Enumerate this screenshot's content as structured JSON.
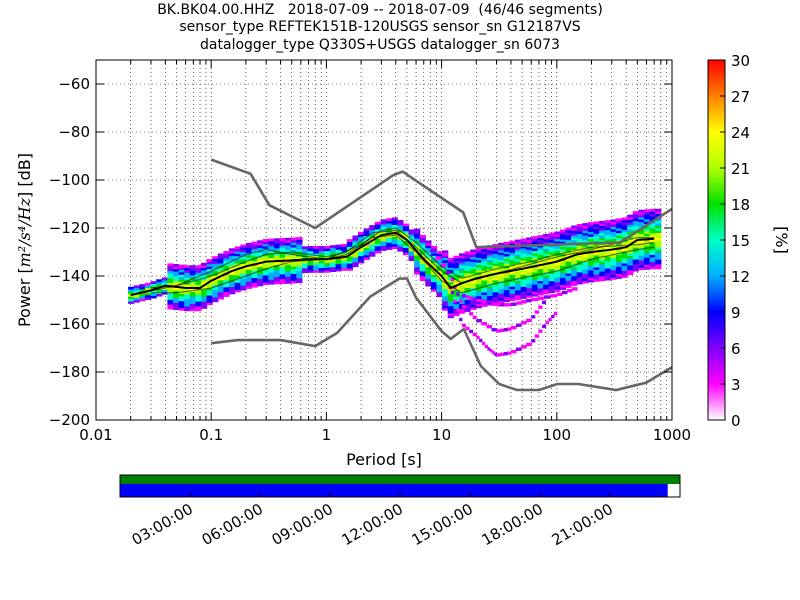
{
  "chart_data": {
    "type": "heatmap",
    "title_lines": [
      "BK.BK04.00.HHZ   2018-07-09 -- 2018-07-09  (46/46 segments)",
      "sensor_type REFTEK151B-120USGS sensor_sn G12187VS",
      "datalogger_type Q330S+USGS datalogger_sn 6073"
    ],
    "xlabel": "Period [s]",
    "ylabel_main": "Power [",
    "ylabel_units": "m²/s⁴/Hz",
    "ylabel_tail": "] [dB]",
    "xscale": "log",
    "xlim": [
      0.01,
      1000
    ],
    "ylim": [
      -200,
      -50
    ],
    "x_ticks": [
      0.01,
      0.1,
      1,
      10,
      100,
      1000
    ],
    "x_tick_labels": [
      "0.01",
      "0.1",
      "1",
      "10",
      "100",
      "1000"
    ],
    "y_ticks": [
      -200,
      -180,
      -160,
      -140,
      -120,
      -100,
      -80,
      -60
    ],
    "y_tick_labels": [
      "−200",
      "−180",
      "−160",
      "−140",
      "−120",
      "−100",
      "−80",
      "−60"
    ],
    "grid": "dotted",
    "colorbar": {
      "label": "[%]",
      "range": [
        0,
        30
      ],
      "ticks": [
        0,
        3,
        6,
        9,
        12,
        15,
        18,
        21,
        24,
        27,
        30
      ],
      "tick_labels": [
        "0",
        "3",
        "6",
        "9",
        "12",
        "15",
        "18",
        "21",
        "24",
        "27",
        "30"
      ]
    },
    "noise_model_high": {
      "name": "NHNM",
      "x": [
        0.1,
        0.22,
        0.32,
        0.8,
        3.8,
        4.6,
        6.3,
        15.4,
        20,
        354.8,
        1000
      ],
      "y": [
        -91.5,
        -97.4,
        -110.5,
        -120,
        -98,
        -96.5,
        -101,
        -113.5,
        -128,
        -126,
        -112
      ]
    },
    "noise_model_low": {
      "name": "NLNM",
      "x": [
        0.1,
        0.17,
        0.4,
        0.8,
        1.24,
        2.4,
        4.3,
        5,
        6,
        10,
        12,
        15.6,
        21.9,
        31.6,
        45,
        70,
        101,
        154,
        328,
        600,
        1000
      ],
      "y": [
        -168,
        -166.7,
        -166.7,
        -169.2,
        -163.7,
        -148.6,
        -141.1,
        -141.1,
        -149,
        -163,
        -166.2,
        -162.1,
        -177.5,
        -185,
        -187.5,
        -187.5,
        -185,
        -185,
        -187.5,
        -184.4,
        -178
      ]
    },
    "mean_psd": {
      "name": "mean",
      "x": [
        0.02,
        0.03,
        0.04,
        0.06,
        0.08,
        0.1,
        0.15,
        0.2,
        0.3,
        0.5,
        0.7,
        1,
        1.5,
        2,
        3,
        4,
        5,
        7,
        10,
        12,
        15,
        20,
        30,
        50,
        80,
        100,
        150,
        200,
        300,
        400,
        500,
        700
      ],
      "y": [
        -148,
        -146,
        -144,
        -145,
        -145,
        -142,
        -138,
        -136,
        -134,
        -133.5,
        -133,
        -133,
        -132,
        -128,
        -123,
        -122,
        -125,
        -133,
        -140,
        -145,
        -143,
        -141,
        -139,
        -137,
        -135,
        -134,
        -131,
        -130,
        -129,
        -128,
        -125,
        -124.5
      ]
    },
    "psd_curves": [
      {
        "x": [
          0.03,
          0.05,
          0.1,
          0.2,
          0.3,
          0.5,
          1,
          1.5,
          2.5,
          4,
          6,
          10,
          15,
          30,
          60,
          100,
          200,
          500,
          700
        ],
        "y": [
          -145,
          -144,
          -140,
          -134,
          -131,
          -130,
          -132,
          -130,
          -122,
          -121,
          -128,
          -138,
          -143,
          -139,
          -135,
          -132,
          -129,
          -124,
          -124
        ]
      },
      {
        "x": [
          0.03,
          0.05,
          0.1,
          0.2,
          0.3,
          0.5,
          1,
          1.5,
          2.5,
          4,
          6,
          10,
          15,
          30,
          60,
          100,
          200,
          500,
          700
        ],
        "y": [
          -147,
          -147,
          -145,
          -140,
          -137,
          -134,
          -133,
          -131,
          -124,
          -123,
          -130,
          -142,
          -147,
          -143,
          -140,
          -138,
          -133,
          -129,
          -128
        ]
      },
      {
        "x": [
          0.02,
          0.05,
          0.1,
          0.2,
          0.3,
          0.5,
          1,
          2,
          3,
          4,
          6,
          10,
          15,
          30,
          60,
          100,
          200,
          500,
          700
        ],
        "y": [
          -148,
          -144,
          -138,
          -131,
          -129,
          -131,
          -133,
          -127,
          -121,
          -120,
          -126,
          -136,
          -141,
          -137,
          -134,
          -131,
          -128,
          -127,
          -126
        ]
      }
    ],
    "outliers": [
      {
        "x": [
          8,
          12,
          15,
          20,
          30,
          40,
          60,
          80
        ],
        "y": [
          -128,
          -140,
          -152,
          -158,
          -163,
          -162,
          -158,
          -150
        ]
      },
      {
        "x": [
          12,
          15,
          20,
          25,
          30,
          40,
          60,
          80,
          100
        ],
        "y": [
          -145,
          -160,
          -165,
          -170,
          -173,
          -172,
          -168,
          -160,
          -155
        ]
      },
      {
        "x": [
          15,
          20,
          30,
          40,
          60,
          100,
          150
        ],
        "y": [
          -148,
          -150,
          -152,
          -152,
          -150,
          -148,
          -145
        ]
      }
    ],
    "availability": {
      "x_tick_labels": [
        "03:00:00",
        "06:00:00",
        "09:00:00",
        "12:00:00",
        "15:00:00",
        "18:00:00",
        "21:00:00"
      ],
      "top_bar_color": "#008000",
      "bottom_bar_color": "#0000ff",
      "data_fraction": 0.978
    }
  }
}
